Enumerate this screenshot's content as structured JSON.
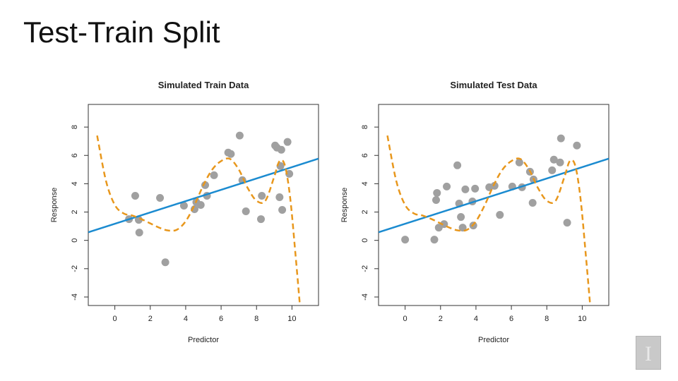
{
  "slide": {
    "title": "Test-Train Split"
  },
  "colors": {
    "points": "#a0a0a0",
    "linear_fit": "#1b8bd0",
    "flexible_fit": "#e8971c"
  },
  "logo": {
    "letter": "I"
  },
  "chart_data": [
    {
      "type": "scatter",
      "title": "Simulated Train Data",
      "xlabel": "Predictor",
      "ylabel": "Response",
      "xlim": [
        -1.5,
        11.5
      ],
      "ylim": [
        -4.6,
        9.6
      ],
      "xticks": [
        "0",
        "2",
        "4",
        "6",
        "8",
        "10"
      ],
      "yticks": [
        "-4",
        "-2",
        "0",
        "2",
        "4",
        "6",
        "8"
      ],
      "series": [
        {
          "x": [
            0.8,
            1.15,
            1.35,
            1.38,
            2.55,
            2.85,
            3.9,
            4.5,
            4.6,
            4.85,
            5.1,
            5.2,
            5.6,
            6.4,
            6.55,
            7.05,
            7.2,
            7.4,
            8.25,
            8.3,
            9.05,
            9.15,
            9.3,
            9.35,
            9.4,
            9.45,
            9.75,
            9.85
          ],
          "y": [
            1.5,
            3.15,
            1.45,
            0.55,
            3.0,
            -1.55,
            2.45,
            2.2,
            2.7,
            2.5,
            3.9,
            3.15,
            4.6,
            6.2,
            6.1,
            7.4,
            4.25,
            2.05,
            1.5,
            3.15,
            6.7,
            6.55,
            3.05,
            5.25,
            6.4,
            2.15,
            6.95,
            4.7
          ]
        }
      ],
      "lines": [
        {
          "kind": "linear",
          "intercept": 1.17,
          "slope": 0.4
        },
        {
          "kind": "flexible",
          "x": [
            -1,
            -0.5,
            0,
            0.5,
            1,
            1.5,
            2,
            2.5,
            3,
            3.5,
            4,
            4.5,
            5,
            5.5,
            6,
            6.5,
            7,
            7.5,
            8,
            8.5,
            9,
            9.3,
            9.6,
            9.9,
            10.2,
            10.45
          ],
          "y": [
            7.4,
            4.2,
            2.5,
            1.9,
            1.75,
            1.5,
            1.2,
            0.9,
            0.7,
            0.75,
            1.35,
            2.5,
            3.9,
            5.0,
            5.6,
            5.75,
            5.0,
            3.7,
            2.8,
            2.8,
            4.5,
            5.6,
            5.3,
            3.0,
            -1.0,
            -4.6
          ]
        }
      ]
    },
    {
      "type": "scatter",
      "title": "Simulated Test Data",
      "xlabel": "Predictor",
      "ylabel": "Response",
      "xlim": [
        -1.5,
        11.5
      ],
      "ylim": [
        -4.6,
        9.6
      ],
      "xticks": [
        "0",
        "2",
        "4",
        "6",
        "8",
        "10"
      ],
      "yticks": [
        "-4",
        "-2",
        "0",
        "2",
        "4",
        "6",
        "8"
      ],
      "series": [
        {
          "x": [
            0.0,
            1.65,
            1.75,
            1.8,
            1.9,
            2.2,
            2.35,
            2.95,
            3.05,
            3.15,
            3.25,
            3.4,
            3.8,
            3.85,
            3.95,
            4.75,
            5.05,
            5.35,
            6.05,
            6.45,
            6.6,
            7.05,
            7.2,
            7.25,
            8.3,
            8.4,
            8.75,
            8.8,
            9.15,
            9.7
          ],
          "y": [
            0.05,
            0.05,
            2.85,
            3.35,
            0.9,
            1.15,
            3.8,
            5.3,
            2.6,
            1.65,
            0.9,
            3.6,
            2.75,
            1.05,
            3.65,
            3.75,
            3.85,
            1.8,
            3.8,
            5.5,
            3.75,
            4.85,
            2.65,
            4.3,
            4.95,
            5.7,
            5.5,
            7.2,
            1.25,
            6.7
          ]
        }
      ],
      "lines": [
        {
          "kind": "linear",
          "intercept": 1.17,
          "slope": 0.4
        },
        {
          "kind": "flexible",
          "x": [
            -1,
            -0.5,
            0,
            0.5,
            1,
            1.5,
            2,
            2.5,
            3,
            3.5,
            4,
            4.5,
            5,
            5.5,
            6,
            6.5,
            7,
            7.5,
            8,
            8.5,
            9,
            9.3,
            9.6,
            9.9,
            10.2,
            10.45
          ],
          "y": [
            7.4,
            4.2,
            2.5,
            1.9,
            1.75,
            1.5,
            1.2,
            0.9,
            0.7,
            0.75,
            1.35,
            2.5,
            3.9,
            5.0,
            5.6,
            5.75,
            5.0,
            3.7,
            2.8,
            2.8,
            4.5,
            5.6,
            5.3,
            3.0,
            -1.0,
            -4.6
          ]
        }
      ]
    }
  ]
}
